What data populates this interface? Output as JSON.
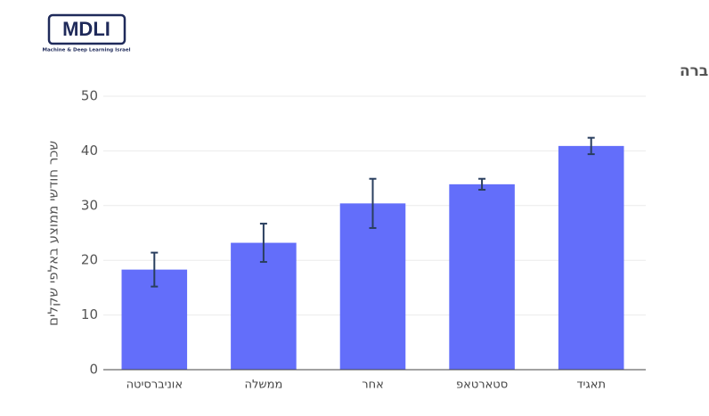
{
  "logo": {
    "title": "MDLI",
    "subtitle": "Machine & Deep Learning Israel"
  },
  "chart_data": {
    "type": "bar",
    "title": "שכר לפי סוג החברה",
    "y_label": "שכר חודשי ממוצע באלפי שקלים",
    "categories": [
      "אוניברסיטה",
      "ממשלה",
      "אחר",
      "סטארטאפ",
      "תאגיד"
    ],
    "values": [
      18.3,
      23.2,
      30.4,
      33.9,
      40.9
    ],
    "errors": [
      3.1,
      3.5,
      4.5,
      1.0,
      1.5
    ],
    "color": "#636efa",
    "error_color": "#2a3f5f",
    "ylim": [
      0,
      50
    ],
    "yticks": [
      0,
      10,
      20,
      30,
      40,
      50
    ],
    "grid": true
  }
}
